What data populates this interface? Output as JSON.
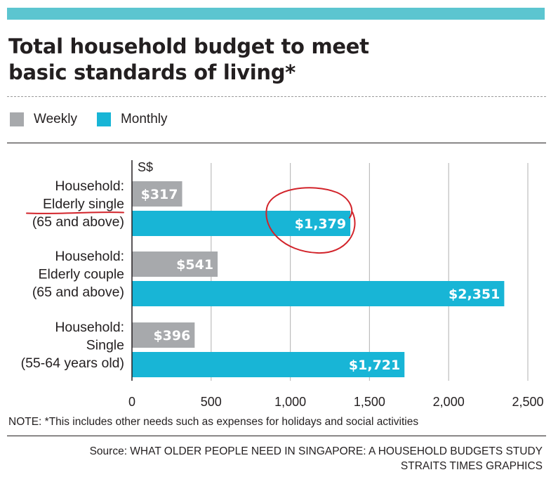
{
  "title_line1": "Total household budget to meet",
  "title_line2": "basic standards of living*",
  "colors": {
    "weekly": "#a7a9ac",
    "monthly": "#18b5d6",
    "accent_bar": "#5cc5d0",
    "annotation": "#d2232a"
  },
  "chart_data": {
    "type": "bar",
    "orientation": "horizontal",
    "title": "Total household budget to meet basic standards of living*",
    "unit_label": "S$",
    "categories": [
      [
        "Household:",
        "Elderly single",
        "(65 and above)"
      ],
      [
        "Household:",
        "Elderly couple",
        "(65 and above)"
      ],
      [
        "Household:",
        "Single",
        "(55-64 years old)"
      ]
    ],
    "series": [
      {
        "name": "Weekly",
        "color": "#a7a9ac",
        "values": [
          317,
          541,
          396
        ],
        "labels": [
          "$317",
          "$541",
          "$396"
        ]
      },
      {
        "name": "Monthly",
        "color": "#18b5d6",
        "values": [
          1379,
          2351,
          1721
        ],
        "labels": [
          "$1,379",
          "$2,351",
          "$1,721"
        ]
      }
    ],
    "xlim": [
      0,
      2500
    ],
    "xticks": [
      0,
      500,
      1000,
      1500,
      2000,
      2500
    ],
    "xtick_labels": [
      "0",
      "500",
      "1,000",
      "1,500",
      "2,000",
      "2,500"
    ],
    "grid": true,
    "legend": "top-left",
    "annotations": [
      {
        "type": "hand-drawn circle",
        "target": "$1,379"
      },
      {
        "type": "hand-drawn underline",
        "target": "Elderly single"
      }
    ]
  },
  "note": "NOTE: *This includes other needs such as expenses for holidays and social activities",
  "source_line1": "Source: WHAT OLDER PEOPLE NEED IN SINGAPORE: A HOUSEHOLD BUDGETS STUDY",
  "source_line2": "STRAITS TIMES GRAPHICS"
}
